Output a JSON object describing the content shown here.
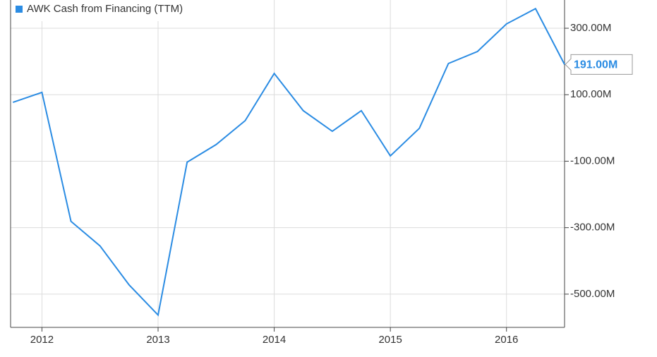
{
  "chart_data": {
    "type": "line",
    "x": [
      2011.75,
      2012,
      2012.25,
      2012.5,
      2012.75,
      2013,
      2013.25,
      2013.5,
      2013.75,
      2014,
      2014.25,
      2014.5,
      2014.75,
      2015,
      2015.25,
      2015.5,
      2015.75,
      2016,
      2016.25,
      2016.5
    ],
    "series": [
      {
        "name": "AWK Cash from Financing (TTM)",
        "color": "#2b8ce3",
        "values": [
          77,
          107,
          -281,
          -355,
          -472,
          -563,
          -103,
          -50,
          22,
          164,
          52,
          -10,
          52,
          -84,
          -1,
          194,
          230,
          313,
          359,
          191
        ],
        "value_labels": [
          null,
          null,
          null,
          null,
          null,
          null,
          null,
          null,
          null,
          null,
          null,
          null,
          null,
          null,
          null,
          null,
          null,
          null,
          null,
          "191.00M"
        ]
      }
    ],
    "xlim": [
      2011.73,
      2016.5
    ],
    "xticks": [
      2012,
      2013,
      2014,
      2015,
      2016
    ],
    "ylim": [
      -600,
      385
    ],
    "yticks": [
      {
        "value": 300,
        "label": "300.00M"
      },
      {
        "value": 100,
        "label": "100.00M"
      },
      {
        "value": -100,
        "label": "-100.00M"
      },
      {
        "value": -300,
        "label": "-300.00M"
      },
      {
        "value": -500,
        "label": "-500.00M"
      }
    ],
    "grid": true,
    "legend": "top-left"
  }
}
